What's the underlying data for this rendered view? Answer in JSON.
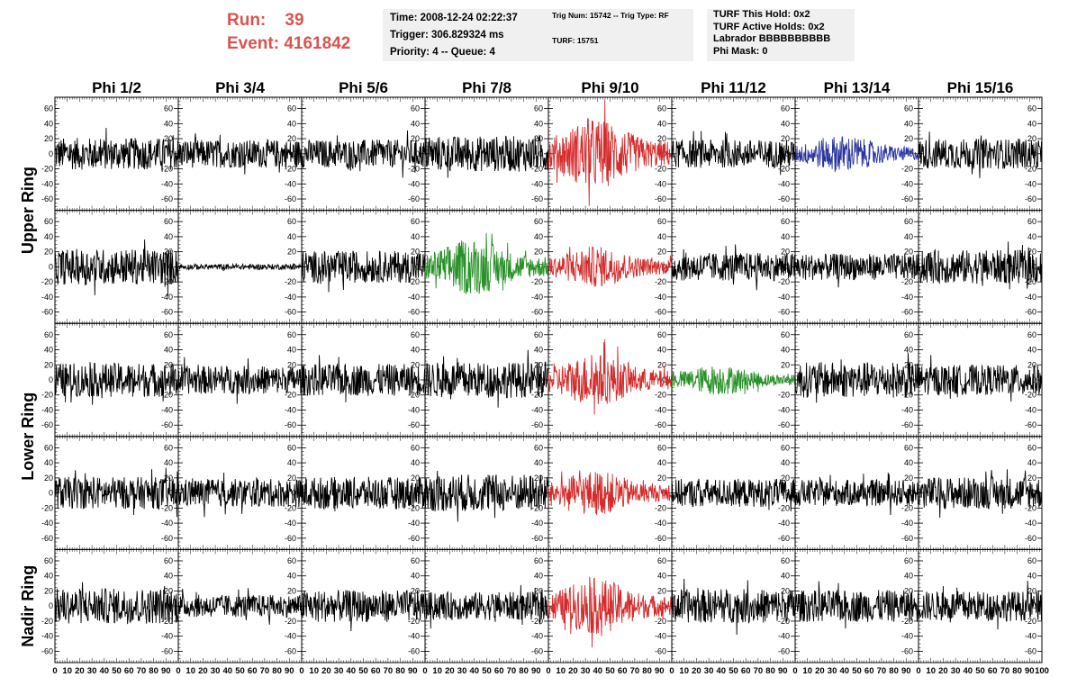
{
  "run": {
    "label": "Run:",
    "value": "39"
  },
  "event": {
    "label": "Event:",
    "value": "4161842"
  },
  "info_time": {
    "time": "Time: 2008-12-24 02:22:37",
    "trigger": "Trigger: 306.829324 ms",
    "priority": "Priority: 4 -- Queue: 4"
  },
  "info_trig": {
    "trig": "Trig Num: 15742 -- Trig Type: RF",
    "turf": "TURF: 15751"
  },
  "info_turf": {
    "hold": "TURF This Hold: 0x2",
    "active": "TURF Active Holds: 0x2",
    "labrador": "Labrador BBBBBBBBBB",
    "phi_mask": "Phi Mask: 0"
  },
  "colors": {
    "normal": "#000000",
    "red": "#d42a2a",
    "green": "#279127",
    "blue": "#2a35a0"
  },
  "chart_data": {
    "type": "line",
    "columns": [
      "Phi 1/2",
      "Phi 3/4",
      "Phi 5/6",
      "Phi 7/8",
      "Phi 9/10",
      "Phi 11/12",
      "Phi 13/14",
      "Phi 15/16"
    ],
    "row_labels": [
      {
        "text": "Upper Ring",
        "rows": [
          0,
          1
        ]
      },
      {
        "text": "Lower Ring",
        "rows": [
          2,
          3
        ]
      },
      {
        "text": "Nadir Ring",
        "rows": [
          4
        ]
      }
    ],
    "xlim": [
      0,
      100
    ],
    "ylim": [
      -75,
      75
    ],
    "y_ticks": [
      -60,
      -40,
      -20,
      0,
      20,
      40,
      60
    ],
    "x_ticks": [
      0,
      10,
      20,
      30,
      40,
      50,
      60,
      70,
      80,
      90,
      100
    ],
    "last_x_tick_label": "100",
    "panels": [
      [
        {
          "color": "normal",
          "amp": 17
        },
        {
          "color": "normal",
          "amp": 15
        },
        {
          "color": "normal",
          "amp": 15
        },
        {
          "color": "normal",
          "amp": 19
        },
        {
          "color": "red",
          "amp": 38
        },
        {
          "color": "normal",
          "amp": 15
        },
        {
          "color": "blue",
          "amp": 20
        },
        {
          "color": "normal",
          "amp": 16
        }
      ],
      [
        {
          "color": "normal",
          "amp": 19
        },
        {
          "color": "normal",
          "amp": 3
        },
        {
          "color": "normal",
          "amp": 17
        },
        {
          "color": "green",
          "amp": 30
        },
        {
          "color": "red",
          "amp": 22
        },
        {
          "color": "normal",
          "amp": 15
        },
        {
          "color": "normal",
          "amp": 14
        },
        {
          "color": "normal",
          "amp": 18
        }
      ],
      [
        {
          "color": "normal",
          "amp": 18
        },
        {
          "color": "normal",
          "amp": 15
        },
        {
          "color": "normal",
          "amp": 17
        },
        {
          "color": "normal",
          "amp": 19
        },
        {
          "color": "red",
          "amp": 28
        },
        {
          "color": "green",
          "amp": 16
        },
        {
          "color": "normal",
          "amp": 19
        },
        {
          "color": "normal",
          "amp": 16
        }
      ],
      [
        {
          "color": "normal",
          "amp": 17
        },
        {
          "color": "normal",
          "amp": 15
        },
        {
          "color": "normal",
          "amp": 17
        },
        {
          "color": "normal",
          "amp": 20
        },
        {
          "color": "red",
          "amp": 24
        },
        {
          "color": "normal",
          "amp": 15
        },
        {
          "color": "normal",
          "amp": 14
        },
        {
          "color": "normal",
          "amp": 17
        }
      ],
      [
        {
          "color": "normal",
          "amp": 19
        },
        {
          "color": "normal",
          "amp": 12
        },
        {
          "color": "normal",
          "amp": 17
        },
        {
          "color": "normal",
          "amp": 15
        },
        {
          "color": "red",
          "amp": 30
        },
        {
          "color": "normal",
          "amp": 18
        },
        {
          "color": "normal",
          "amp": 17
        },
        {
          "color": "normal",
          "amp": 16
        }
      ]
    ]
  }
}
